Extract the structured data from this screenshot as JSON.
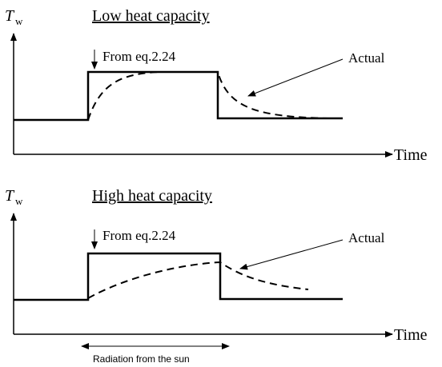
{
  "panels": [
    {
      "ylabel": "T",
      "ylabel_sub": "w",
      "title": "Low heat capacity",
      "annotation": "From eq.2.24",
      "actual_label": "Actual",
      "xlabel": "Time"
    },
    {
      "ylabel": "T",
      "ylabel_sub": "w",
      "title": "High heat capacity",
      "annotation": "From eq.2.24",
      "actual_label": "Actual",
      "xlabel": "Time"
    }
  ],
  "footer": "Radiation from the sun"
}
